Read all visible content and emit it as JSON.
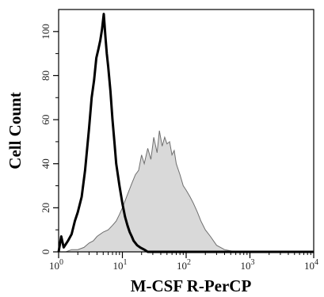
{
  "chart_data": {
    "type": "area",
    "title": "",
    "xlabel": "M-CSF R-PerCP",
    "ylabel": "Cell Count",
    "x_scale": "log",
    "xlim": [
      1,
      10000
    ],
    "ylim": [
      0,
      110
    ],
    "x_ticks": [
      1,
      10,
      100,
      1000,
      10000
    ],
    "x_tick_labels": [
      {
        "base": "10",
        "exp": "0"
      },
      {
        "base": "10",
        "exp": "1"
      },
      {
        "base": "10",
        "exp": "2"
      },
      {
        "base": "10",
        "exp": "3"
      },
      {
        "base": "10",
        "exp": "4"
      }
    ],
    "y_ticks": [
      0,
      20,
      40,
      60,
      80,
      100
    ],
    "y_tick_labels": [
      "0",
      "20",
      "40",
      "60",
      "80",
      "100"
    ],
    "grid": false,
    "legend": "none",
    "series": [
      {
        "style": "filled",
        "color": "#d9d9d9",
        "stroke": "#6e6e6e",
        "x": [
          1.0,
          1.3,
          1.6,
          2.0,
          2.5,
          3.0,
          3.5,
          4.0,
          5.0,
          6.0,
          7.0,
          8.0,
          9.0,
          10.0,
          12.0,
          14.0,
          16.0,
          18.0,
          20.0,
          22.0,
          25.0,
          28.0,
          31.0,
          35.0,
          38.0,
          42.0,
          46.0,
          50.0,
          55.0,
          60.0,
          65.0,
          70.0,
          80.0,
          90.0,
          100.0,
          115.0,
          130.0,
          150.0,
          170.0,
          200.0,
          240.0,
          300.0,
          400.0,
          600.0,
          1000.0,
          3000.0,
          10000.0
        ],
        "values": [
          0,
          0,
          1,
          1,
          2,
          4,
          5,
          7,
          9,
          10,
          12,
          14,
          17,
          20,
          26,
          31,
          35,
          37,
          44,
          40,
          47,
          42,
          52,
          45,
          55,
          48,
          52,
          49,
          50,
          44,
          46,
          40,
          35,
          30,
          28,
          25,
          22,
          18,
          14,
          10,
          7,
          3,
          1,
          0,
          0,
          0,
          0
        ]
      },
      {
        "style": "line",
        "color": "#000000",
        "x": [
          1.0,
          1.1,
          1.2,
          1.4,
          1.6,
          1.8,
          2.0,
          2.3,
          2.6,
          3.0,
          3.3,
          3.6,
          3.9,
          4.2,
          4.5,
          4.8,
          5.1,
          5.4,
          5.7,
          6.0,
          6.5,
          7.0,
          7.5,
          8.0,
          9.0,
          10.0,
          11.0,
          12.0,
          13.0,
          14.0,
          15.0,
          17.0,
          19.0,
          22.0,
          25.0,
          30.0,
          40.0,
          100.0,
          1000.0,
          10000.0
        ],
        "values": [
          0,
          7,
          2,
          5,
          8,
          14,
          18,
          25,
          37,
          56,
          70,
          78,
          88,
          92,
          96,
          101,
          108,
          98,
          90,
          84,
          73,
          60,
          50,
          40,
          30,
          22,
          16,
          12,
          9,
          7,
          5,
          3,
          2,
          1,
          0,
          0,
          0,
          0,
          0,
          0
        ]
      }
    ]
  }
}
